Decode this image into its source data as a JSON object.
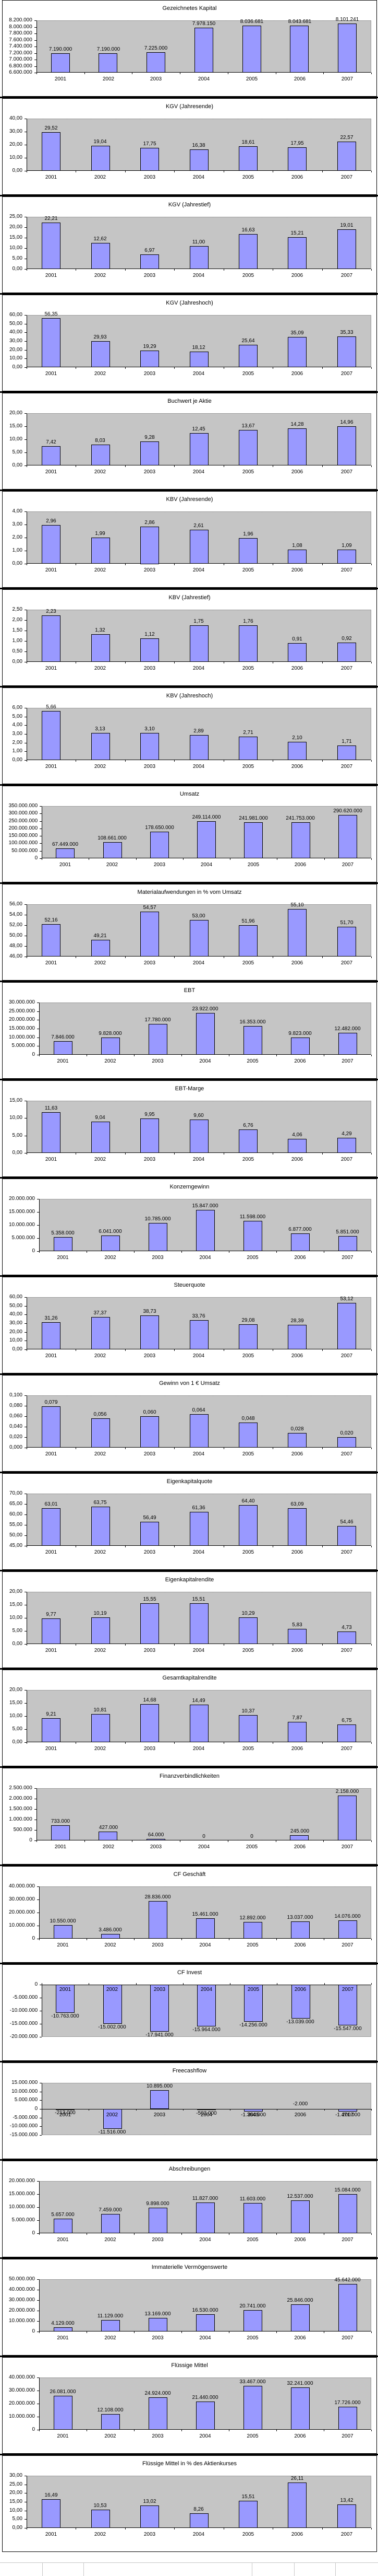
{
  "page": {
    "years": [
      "2001",
      "2002",
      "2003",
      "2004",
      "2005",
      "2006",
      "2007"
    ],
    "colors": {
      "bar_fill": "#9999FF",
      "bar_border": "#000000",
      "plot_background": "#C0C0C0",
      "panel_background": "#FFFFFF",
      "separator": "#000000",
      "text": "#000000"
    }
  },
  "chart_data": [
    {
      "type": "bar",
      "title": "Gezeichnetes Kapital",
      "categories": [
        "2001",
        "2002",
        "2003",
        "2004",
        "2005",
        "2006",
        "2007"
      ],
      "values": [
        7190000,
        7190000,
        7225000,
        7978150,
        8036681,
        8043681,
        8101241
      ],
      "labels": [
        "7.190.000",
        "7.190.000",
        "7.225.000",
        "7.978.150",
        "8.036.681",
        "8.043.681",
        "8.101.241"
      ],
      "xlabel": "",
      "ylabel": "",
      "ylim": [
        6600000,
        8200000
      ],
      "ystep": 200000,
      "ydecimals": 0,
      "grid": false,
      "legend": "none"
    },
    {
      "type": "bar",
      "title": "KGV (Jahresende)",
      "categories": [
        "2001",
        "2002",
        "2003",
        "2004",
        "2005",
        "2006",
        "2007"
      ],
      "values": [
        29.52,
        19.04,
        17.75,
        16.38,
        18.61,
        17.95,
        22.57
      ],
      "labels": [
        "29,52",
        "19,04",
        "17,75",
        "16,38",
        "18,61",
        "17,95",
        "22,57"
      ],
      "xlabel": "",
      "ylabel": "",
      "ylim": [
        0,
        40
      ],
      "ystep": 10,
      "ydecimals": 2,
      "grid": false,
      "legend": "none"
    },
    {
      "type": "bar",
      "title": "KGV (Jahrestief)",
      "categories": [
        "2001",
        "2002",
        "2003",
        "2004",
        "2005",
        "2006",
        "2007"
      ],
      "values": [
        22.21,
        12.62,
        6.97,
        11.0,
        16.63,
        15.21,
        19.01
      ],
      "labels": [
        "22,21",
        "12,62",
        "6,97",
        "11,00",
        "16,63",
        "15,21",
        "19,01"
      ],
      "xlabel": "",
      "ylabel": "",
      "ylim": [
        0,
        25
      ],
      "ystep": 5,
      "ydecimals": 2,
      "grid": false,
      "legend": "none"
    },
    {
      "type": "bar",
      "title": "KGV (Jahreshoch)",
      "categories": [
        "2001",
        "2002",
        "2003",
        "2004",
        "2005",
        "2006",
        "2007"
      ],
      "values": [
        56.35,
        29.93,
        19.29,
        18.12,
        25.64,
        35.09,
        35.33
      ],
      "labels": [
        "56,35",
        "29,93",
        "19,29",
        "18,12",
        "25,64",
        "35,09",
        "35,33"
      ],
      "xlabel": "",
      "ylabel": "",
      "ylim": [
        0,
        60
      ],
      "ystep": 10,
      "ydecimals": 2,
      "grid": false,
      "legend": "none"
    },
    {
      "type": "bar",
      "title": "Buchwert je Aktie",
      "categories": [
        "2001",
        "2002",
        "2003",
        "2004",
        "2005",
        "2006",
        "2007"
      ],
      "values": [
        7.42,
        8.03,
        9.28,
        12.45,
        13.67,
        14.28,
        14.96
      ],
      "labels": [
        "7,42",
        "8,03",
        "9,28",
        "12,45",
        "13,67",
        "14,28",
        "14,96"
      ],
      "xlabel": "",
      "ylabel": "",
      "ylim": [
        0,
        20
      ],
      "ystep": 5,
      "ydecimals": 2,
      "grid": false,
      "legend": "none"
    },
    {
      "type": "bar",
      "title": "KBV (Jahresende)",
      "categories": [
        "2001",
        "2002",
        "2003",
        "2004",
        "2005",
        "2006",
        "2007"
      ],
      "values": [
        2.96,
        1.99,
        2.86,
        2.61,
        1.96,
        1.08,
        1.09
      ],
      "labels": [
        "2,96",
        "1,99",
        "2,86",
        "2,61",
        "1,96",
        "1,08",
        "1,09"
      ],
      "xlabel": "",
      "ylabel": "",
      "ylim": [
        0,
        4
      ],
      "ystep": 1,
      "ydecimals": 2,
      "grid": false,
      "legend": "none"
    },
    {
      "type": "bar",
      "title": "KBV (Jahrestief)",
      "categories": [
        "2001",
        "2002",
        "2003",
        "2004",
        "2005",
        "2006",
        "2007"
      ],
      "values": [
        2.23,
        1.32,
        1.12,
        1.75,
        1.76,
        0.91,
        0.92
      ],
      "labels": [
        "2,23",
        "1,32",
        "1,12",
        "1,75",
        "1,76",
        "0,91",
        "0,92"
      ],
      "xlabel": "",
      "ylabel": "",
      "ylim": [
        0,
        2.5
      ],
      "ystep": 0.5,
      "ydecimals": 2,
      "grid": false,
      "legend": "none"
    },
    {
      "type": "bar",
      "title": "KBV (Jahreshoch)",
      "categories": [
        "2001",
        "2002",
        "2003",
        "2004",
        "2005",
        "2006",
        "2007"
      ],
      "values": [
        5.66,
        3.13,
        3.1,
        2.89,
        2.71,
        2.1,
        1.71
      ],
      "labels": [
        "5,66",
        "3,13",
        "3,10",
        "2,89",
        "2,71",
        "2,10",
        "1,71"
      ],
      "xlabel": "",
      "ylabel": "",
      "ylim": [
        0,
        6
      ],
      "ystep": 1,
      "ydecimals": 2,
      "grid": false,
      "legend": "none"
    },
    {
      "type": "bar",
      "title": "Umsatz",
      "categories": [
        "2001",
        "2002",
        "2003",
        "2004",
        "2005",
        "2006",
        "2007"
      ],
      "values": [
        67449000,
        108661000,
        178650000,
        249114000,
        241981000,
        241753000,
        290620000
      ],
      "labels": [
        "67.449.000",
        "108.661.000",
        "178.650.000",
        "249.114.000",
        "241.981.000",
        "241.753.000",
        "290.620.000"
      ],
      "xlabel": "",
      "ylabel": "",
      "ylim": [
        0,
        350000000
      ],
      "ystep": 50000000,
      "ydecimals": 0,
      "grid": false,
      "legend": "none"
    },
    {
      "type": "bar",
      "title": "Materialaufwendungen in % vom Umsatz",
      "categories": [
        "2001",
        "2002",
        "2003",
        "2004",
        "2005",
        "2006",
        "2007"
      ],
      "values": [
        52.16,
        49.21,
        54.57,
        53.0,
        51.96,
        55.1,
        51.7
      ],
      "labels": [
        "52,16",
        "49,21",
        "54,57",
        "53,00",
        "51,96",
        "55,10",
        "51,70"
      ],
      "xlabel": "",
      "ylabel": "",
      "ylim": [
        46,
        56
      ],
      "ystep": 2,
      "ydecimals": 2,
      "grid": false,
      "legend": "none"
    },
    {
      "type": "bar",
      "title": "EBT",
      "categories": [
        "2001",
        "2002",
        "2003",
        "2004",
        "2005",
        "2006",
        "2007"
      ],
      "values": [
        7846000,
        9828000,
        17780000,
        23922000,
        16353000,
        9823000,
        12482000
      ],
      "labels": [
        "7.846.000",
        "9.828.000",
        "17.780.000",
        "23.922.000",
        "16.353.000",
        "9.823.000",
        "12.482.000"
      ],
      "xlabel": "",
      "ylabel": "",
      "ylim": [
        0,
        30000000
      ],
      "ystep": 5000000,
      "ydecimals": 0,
      "grid": false,
      "legend": "none"
    },
    {
      "type": "bar",
      "title": "EBT-Marge",
      "categories": [
        "2001",
        "2002",
        "2003",
        "2004",
        "2005",
        "2006",
        "2007"
      ],
      "values": [
        11.63,
        9.04,
        9.95,
        9.6,
        6.76,
        4.06,
        4.29
      ],
      "labels": [
        "11,63",
        "9,04",
        "9,95",
        "9,60",
        "6,76",
        "4,06",
        "4,29"
      ],
      "xlabel": "",
      "ylabel": "",
      "ylim": [
        0,
        15
      ],
      "ystep": 5,
      "ydecimals": 2,
      "grid": false,
      "legend": "none"
    },
    {
      "type": "bar",
      "title": "Konzerngewinn",
      "categories": [
        "2001",
        "2002",
        "2003",
        "2004",
        "2005",
        "2006",
        "2007"
      ],
      "values": [
        5358000,
        6041000,
        10785000,
        15847000,
        11598000,
        6877000,
        5851000
      ],
      "labels": [
        "5.358.000",
        "6.041.000",
        "10.785.000",
        "15.847.000",
        "11.598.000",
        "6.877.000",
        "5.851.000"
      ],
      "xlabel": "",
      "ylabel": "",
      "ylim": [
        0,
        20000000
      ],
      "ystep": 5000000,
      "ydecimals": 0,
      "grid": false,
      "legend": "none"
    },
    {
      "type": "bar",
      "title": "Steuerquote",
      "categories": [
        "2001",
        "2002",
        "2003",
        "2004",
        "2005",
        "2006",
        "2007"
      ],
      "values": [
        31.26,
        37.37,
        38.73,
        33.76,
        29.08,
        28.39,
        53.12
      ],
      "labels": [
        "31,26",
        "37,37",
        "38,73",
        "33,76",
        "29,08",
        "28,39",
        "53,12"
      ],
      "xlabel": "",
      "ylabel": "",
      "ylim": [
        0,
        60
      ],
      "ystep": 10,
      "ydecimals": 2,
      "grid": false,
      "legend": "none"
    },
    {
      "type": "bar",
      "title": "Gewinn von 1 €  Umsatz",
      "categories": [
        "2001",
        "2002",
        "2003",
        "2004",
        "2005",
        "2006",
        "2007"
      ],
      "values": [
        0.079,
        0.056,
        0.06,
        0.064,
        0.048,
        0.028,
        0.02
      ],
      "labels": [
        "0,079",
        "0,056",
        "0,060",
        "0,064",
        "0,048",
        "0,028",
        "0,020"
      ],
      "xlabel": "",
      "ylabel": "",
      "ylim": [
        0,
        0.1
      ],
      "ystep": 0.02,
      "ydecimals": 3,
      "grid": false,
      "legend": "none"
    },
    {
      "type": "bar",
      "title": "Eigenkapitalquote",
      "categories": [
        "2001",
        "2002",
        "2003",
        "2004",
        "2005",
        "2006",
        "2007"
      ],
      "values": [
        63.01,
        63.75,
        56.49,
        61.36,
        64.4,
        63.09,
        54.46
      ],
      "labels": [
        "63,01",
        "63,75",
        "56,49",
        "61,36",
        "64,40",
        "63,09",
        "54,46"
      ],
      "xlabel": "",
      "ylabel": "",
      "ylim": [
        45,
        70
      ],
      "ystep": 5,
      "ydecimals": 2,
      "grid": false,
      "legend": "none"
    },
    {
      "type": "bar",
      "title": "Eigenkapitalrendite",
      "categories": [
        "2001",
        "2002",
        "2003",
        "2004",
        "2005",
        "2006",
        "2007"
      ],
      "values": [
        9.77,
        10.19,
        15.55,
        15.51,
        10.29,
        5.83,
        4.73
      ],
      "labels": [
        "9,77",
        "10,19",
        "15,55",
        "15,51",
        "10,29",
        "5,83",
        "4,73"
      ],
      "xlabel": "",
      "ylabel": "",
      "ylim": [
        0,
        20
      ],
      "ystep": 5,
      "ydecimals": 2,
      "grid": false,
      "legend": "none"
    },
    {
      "type": "bar",
      "title": "Gesamtkapitalrendite",
      "categories": [
        "2001",
        "2002",
        "2003",
        "2004",
        "2005",
        "2006",
        "2007"
      ],
      "values": [
        9.21,
        10.81,
        14.68,
        14.49,
        10.37,
        7.87,
        6.75
      ],
      "labels": [
        "9,21",
        "10,81",
        "14,68",
        "14,49",
        "10,37",
        "7,87",
        "6,75"
      ],
      "xlabel": "",
      "ylabel": "",
      "ylim": [
        0,
        20
      ],
      "ystep": 5,
      "ydecimals": 2,
      "grid": false,
      "legend": "none"
    },
    {
      "type": "bar",
      "title": "Finanzverbindlichkeiten",
      "categories": [
        "2001",
        "2002",
        "2003",
        "2004",
        "2005",
        "2006",
        "2007"
      ],
      "values": [
        733000,
        427000,
        64000,
        0,
        0,
        245000,
        2158000
      ],
      "labels": [
        "733.000",
        "427.000",
        "64.000",
        "0",
        "0",
        "245.000",
        "2.158.000"
      ],
      "xlabel": "",
      "ylabel": "",
      "ylim": [
        0,
        2500000
      ],
      "ystep": 500000,
      "ydecimals": 0,
      "grid": false,
      "legend": "none"
    },
    {
      "type": "bar",
      "title": "CF Geschäft",
      "categories": [
        "2001",
        "2002",
        "2003",
        "2004",
        "2005",
        "2006",
        "2007"
      ],
      "values": [
        10550000,
        3486000,
        28836000,
        15461000,
        12892000,
        13037000,
        14076000
      ],
      "labels": [
        "10.550.000",
        "3.486.000",
        "28.836.000",
        "15.461.000",
        "12.892.000",
        "13.037.000",
        "14.076.000"
      ],
      "xlabel": "",
      "ylabel": "",
      "ylim": [
        0,
        40000000
      ],
      "ystep": 10000000,
      "ydecimals": 0,
      "grid": false,
      "legend": "none"
    },
    {
      "type": "bar",
      "title": "CF Invest",
      "categories": [
        "2001",
        "2002",
        "2003",
        "2004",
        "2005",
        "2006",
        "2007"
      ],
      "values": [
        -10763000,
        -15002000,
        -17941000,
        -15964000,
        -14256000,
        -13039000,
        -15547000
      ],
      "labels": [
        "-10.763.000",
        "-15.002.000",
        "-17.941.000",
        "-15.964.000",
        "-14.256.000",
        "-13.039.000",
        "-15.547.000"
      ],
      "xlabel": "",
      "ylabel": "",
      "ylim": [
        -20000000,
        0
      ],
      "ystep": 5000000,
      "ydecimals": 0,
      "grid": false,
      "legend": "none",
      "cat_pos": "inside-top"
    },
    {
      "type": "bar",
      "title": "Freecashflow",
      "categories": [
        "2001",
        "2002",
        "2003",
        "2004",
        "2005",
        "2006",
        "2007"
      ],
      "values": [
        -213000,
        -11516000,
        10895000,
        -503000,
        -1364000,
        -2000,
        -1471000
      ],
      "labels": [
        "-213.000",
        "-11.516.000",
        "10.895.000",
        "-503.000",
        "-1.364.000",
        "-2.000",
        "-1.471.000"
      ],
      "xlabel": "",
      "ylabel": "",
      "ylim": [
        -15000000,
        15000000
      ],
      "ystep": 5000000,
      "ydecimals": 0,
      "grid": false,
      "legend": "none",
      "cat_pos": "below-zero",
      "label_overrides": {
        "5": "above-zero"
      }
    },
    {
      "type": "bar",
      "title": "Abschreibungen",
      "categories": [
        "2001",
        "2002",
        "2003",
        "2004",
        "2005",
        "2006",
        "2007"
      ],
      "values": [
        5657000,
        7459000,
        9898000,
        11827000,
        11603000,
        12537000,
        15084000
      ],
      "labels": [
        "5.657.000",
        "7.459.000",
        "9.898.000",
        "11.827.000",
        "11.603.000",
        "12.537.000",
        "15.084.000"
      ],
      "xlabel": "",
      "ylabel": "",
      "ylim": [
        0,
        20000000
      ],
      "ystep": 5000000,
      "ydecimals": 0,
      "grid": false,
      "legend": "none"
    },
    {
      "type": "bar",
      "title": "Immaterielle Vermögenswerte",
      "categories": [
        "2001",
        "2002",
        "2003",
        "2004",
        "2005",
        "2006",
        "2007"
      ],
      "values": [
        4129000,
        11129000,
        13169000,
        16530000,
        20741000,
        25846000,
        45642000
      ],
      "labels": [
        "4.129.000",
        "11.129.000",
        "13.169.000",
        "16.530.000",
        "20.741.000",
        "25.846.000",
        "45.642.000"
      ],
      "xlabel": "",
      "ylabel": "",
      "ylim": [
        0,
        50000000
      ],
      "ystep": 10000000,
      "ydecimals": 0,
      "grid": false,
      "legend": "none"
    },
    {
      "type": "bar",
      "title": "Flüssige Mittel",
      "categories": [
        "2001",
        "2002",
        "2003",
        "2004",
        "2005",
        "2006",
        "2007"
      ],
      "values": [
        26081000,
        12108000,
        24924000,
        21440000,
        33467000,
        32241000,
        17726000
      ],
      "labels": [
        "26.081.000",
        "12.108.000",
        "24.924.000",
        "21.440.000",
        "33.467.000",
        "32.241.000",
        "17.726.000"
      ],
      "xlabel": "",
      "ylabel": "",
      "ylim": [
        0,
        40000000
      ],
      "ystep": 10000000,
      "ydecimals": 0,
      "grid": false,
      "legend": "none"
    },
    {
      "type": "bar",
      "title": "Flüssige Mittel in % des Aktienkurses",
      "categories": [
        "2001",
        "2002",
        "2003",
        "2004",
        "2005",
        "2006",
        "2007"
      ],
      "values": [
        16.49,
        10.53,
        13.02,
        8.26,
        15.51,
        26.11,
        13.42
      ],
      "labels": [
        "16,49",
        "10,53",
        "13,02",
        "8,26",
        "15,51",
        "26,11",
        "13,42"
      ],
      "xlabel": "",
      "ylabel": "",
      "ylim": [
        0,
        30
      ],
      "ystep": 5,
      "ydecimals": 2,
      "grid": false,
      "legend": "none"
    }
  ]
}
